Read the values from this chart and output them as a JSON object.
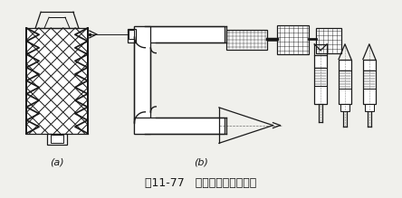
{
  "bg_color": "#f0f0ec",
  "line_color": "#1a1a1a",
  "caption": "图11-77   螺纹百分尺测量中径",
  "label_a": "(a)",
  "label_b": "(b)",
  "caption_fontsize": 9,
  "label_fontsize": 8
}
